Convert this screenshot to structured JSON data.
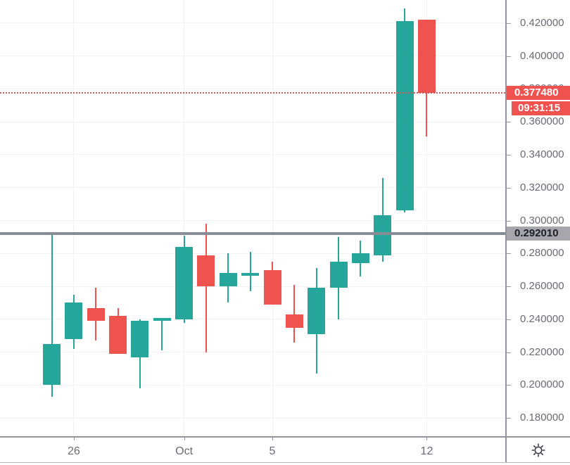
{
  "chart_data": {
    "type": "candlestick",
    "grid": true,
    "ylim": [
      0.169,
      0.434
    ],
    "y_ticks": [
      {
        "value": 0.18,
        "label": "0.180000"
      },
      {
        "value": 0.2,
        "label": "0.200000"
      },
      {
        "value": 0.22,
        "label": "0.220000"
      },
      {
        "value": 0.24,
        "label": "0.240000"
      },
      {
        "value": 0.26,
        "label": "0.260000"
      },
      {
        "value": 0.28,
        "label": "0.280000"
      },
      {
        "value": 0.3,
        "label": "0.300000"
      },
      {
        "value": 0.32,
        "label": "0.320000"
      },
      {
        "value": 0.34,
        "label": "0.340000"
      },
      {
        "value": 0.36,
        "label": "0.360000"
      },
      {
        "value": 0.38,
        "label": "0.380000"
      },
      {
        "value": 0.4,
        "label": "0.400000"
      },
      {
        "value": 0.42,
        "label": "0.420000"
      }
    ],
    "x_ticks": [
      {
        "label": "26",
        "candle_index": 1
      },
      {
        "label": "Oct",
        "candle_index": 6
      },
      {
        "label": "5",
        "candle_index": 10
      },
      {
        "label": "12",
        "candle_index": 17
      }
    ],
    "candles": [
      {
        "open": 0.2,
        "high": 0.292,
        "low": 0.193,
        "close": 0.225
      },
      {
        "open": 0.228,
        "high": 0.255,
        "low": 0.222,
        "close": 0.25
      },
      {
        "open": 0.247,
        "high": 0.259,
        "low": 0.227,
        "close": 0.239
      },
      {
        "open": 0.242,
        "high": 0.247,
        "low": 0.219,
        "close": 0.219
      },
      {
        "open": 0.217,
        "high": 0.24,
        "low": 0.198,
        "close": 0.239
      },
      {
        "open": 0.24,
        "high": 0.241,
        "low": 0.221,
        "close": 0.241
      },
      {
        "open": 0.24,
        "high": 0.291,
        "low": 0.238,
        "close": 0.284
      },
      {
        "open": 0.279,
        "high": 0.298,
        "low": 0.22,
        "close": 0.26
      },
      {
        "open": 0.26,
        "high": 0.28,
        "low": 0.25,
        "close": 0.268
      },
      {
        "open": 0.2675,
        "high": 0.281,
        "low": 0.257,
        "close": 0.268
      },
      {
        "open": 0.27,
        "high": 0.275,
        "low": 0.249,
        "close": 0.249
      },
      {
        "open": 0.243,
        "high": 0.261,
        "low": 0.226,
        "close": 0.235
      },
      {
        "open": 0.231,
        "high": 0.271,
        "low": 0.207,
        "close": 0.259
      },
      {
        "open": 0.259,
        "high": 0.29,
        "low": 0.24,
        "close": 0.275
      },
      {
        "open": 0.274,
        "high": 0.288,
        "low": 0.266,
        "close": 0.28
      },
      {
        "open": 0.279,
        "high": 0.326,
        "low": 0.275,
        "close": 0.303
      },
      {
        "open": 0.306,
        "high": 0.429,
        "low": 0.305,
        "close": 0.421
      },
      {
        "open": 0.422,
        "high": 0.422,
        "low": 0.351,
        "close": 0.37748
      }
    ],
    "colors": {
      "bull": "#26a69a",
      "bear": "#ef5350",
      "grid": "#f0f2f5",
      "level_line": "#888c94",
      "level_label_bg": "#a5a7ac",
      "last_price_bg": "#ef5350",
      "axis_text": "#686b76"
    },
    "horizontal_line": {
      "value": 0.29201,
      "label": "0.292010"
    },
    "last_price": {
      "value": 0.37748,
      "label": "0.377480",
      "countdown": "09:31:15"
    }
  },
  "icons": {
    "axis_settings": "gear-sun-icon"
  }
}
